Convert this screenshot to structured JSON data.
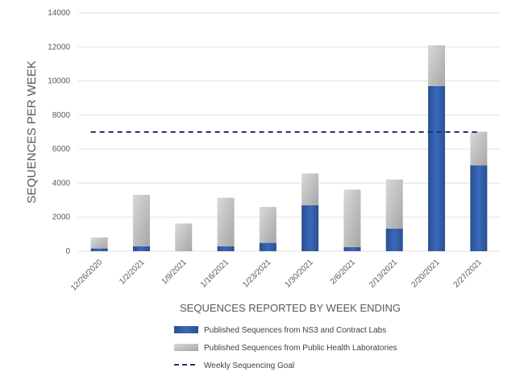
{
  "chart_data": {
    "type": "bar",
    "stacked": true,
    "title": "",
    "xlabel": "SEQUENCES REPORTED BY WEEK ENDING",
    "ylabel": "SEQUENCES PER WEEK",
    "ylim": [
      0,
      14000
    ],
    "yticks": [
      0,
      2000,
      4000,
      6000,
      8000,
      10000,
      12000,
      14000
    ],
    "grid": true,
    "legend_position": "bottom",
    "categories": [
      "12/26/2020",
      "1/2/2021",
      "1/9/2021",
      "1/16/2021",
      "1/23/2021",
      "1/30/2021",
      "2/6/2021",
      "2/13/2021",
      "2/20/2021",
      "2/27/2021"
    ],
    "series": [
      {
        "name": "Published Sequences from NS3 and Contract Labs",
        "color": "#2f5597",
        "values": [
          160,
          290,
          0,
          290,
          490,
          2700,
          240,
          1330,
          9700,
          5050
        ]
      },
      {
        "name": "Published Sequences from Public Health Laboratories",
        "color": "#bfbfbf",
        "values": [
          650,
          3020,
          1630,
          2850,
          2110,
          1870,
          3380,
          2880,
          2400,
          1970
        ]
      }
    ],
    "reference_line": {
      "name": "Weekly Sequencing Goal",
      "value": 7000,
      "color": "#203864",
      "style": "dashed"
    }
  }
}
